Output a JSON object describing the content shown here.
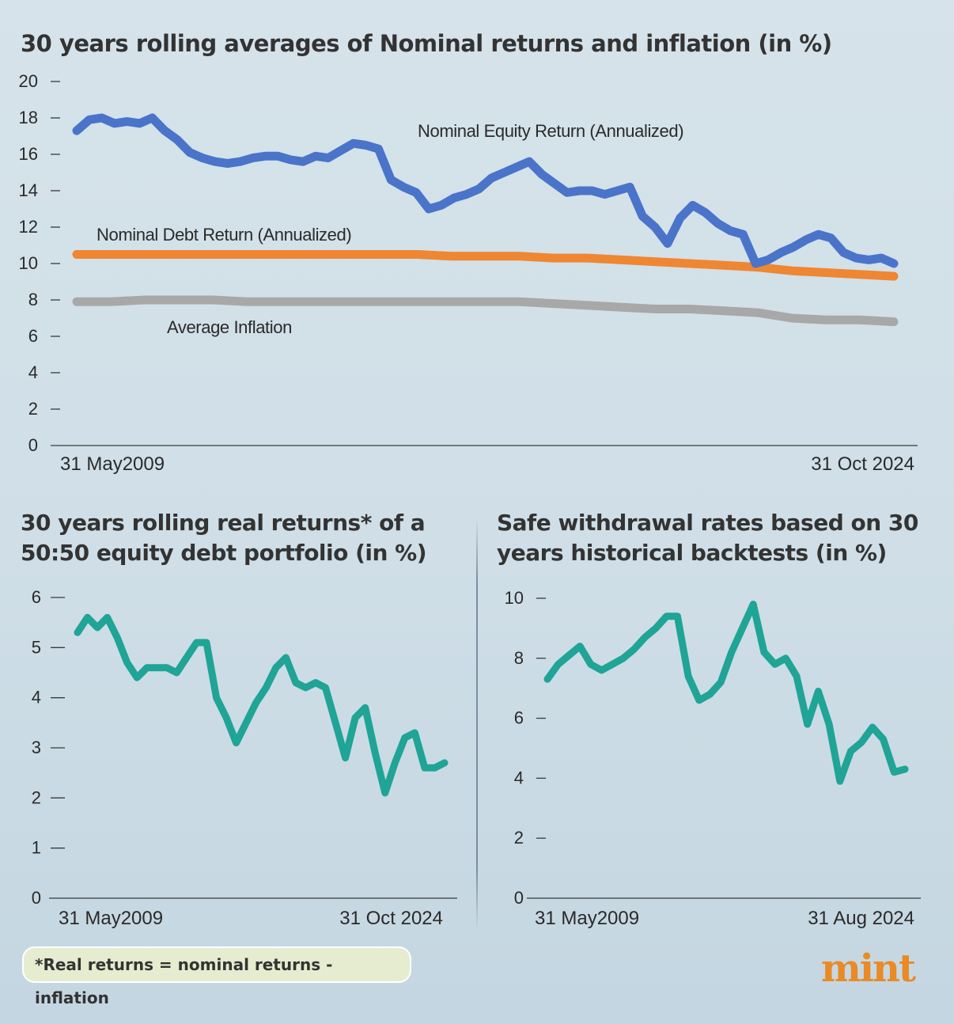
{
  "brand": {
    "logo": "mint",
    "logo_color": "#e98a27"
  },
  "footnote": "*Real returns = nominal returns - inflation",
  "colors": {
    "equity": "#4a74c9",
    "debt": "#ef8632",
    "inflation": "#a8a8a8",
    "teal": "#1fa496"
  },
  "chart_data": [
    {
      "id": "main",
      "type": "line",
      "title": "30 years rolling averages of Nominal returns and inflation (in %)",
      "xlabel": "",
      "ylabel": "",
      "ylim": [
        0,
        20
      ],
      "yticks": [
        "20",
        "18",
        "16",
        "14",
        "12",
        "10",
        "8",
        "6",
        "4",
        "2",
        "0"
      ],
      "x_start_label": "31 May2009",
      "x_end_label": "31 Oct 2024",
      "grid": false,
      "series": [
        {
          "name": "Nominal Equity Return (Annualized)",
          "color": "#4a74c9",
          "values": [
            17.3,
            17.9,
            18.0,
            17.7,
            17.8,
            17.7,
            18.0,
            17.3,
            16.8,
            16.1,
            15.8,
            15.6,
            15.5,
            15.6,
            15.8,
            15.9,
            15.9,
            15.7,
            15.6,
            15.9,
            15.8,
            16.2,
            16.6,
            16.5,
            16.3,
            14.6,
            14.2,
            13.9,
            13.0,
            13.2,
            13.6,
            13.8,
            14.1,
            14.7,
            15.0,
            15.3,
            15.6,
            14.9,
            14.4,
            13.9,
            14.0,
            14.0,
            13.8,
            14.0,
            14.2,
            12.6,
            12.0,
            11.1,
            12.5,
            13.2,
            12.8,
            12.2,
            11.8,
            11.6,
            10.0,
            10.2,
            10.6,
            10.9,
            11.3,
            11.6,
            11.4,
            10.6,
            10.3,
            10.2,
            10.3,
            10.0
          ]
        },
        {
          "name": "Nominal Debt Return (Annualized)",
          "color": "#ef8632",
          "values": [
            10.5,
            10.5,
            10.5,
            10.5,
            10.5,
            10.5,
            10.5,
            10.5,
            10.5,
            10.5,
            10.5,
            10.4,
            10.4,
            10.4,
            10.3,
            10.3,
            10.2,
            10.1,
            10.0,
            9.9,
            9.8,
            9.6,
            9.5,
            9.4,
            9.3
          ]
        },
        {
          "name": "Average Inflation",
          "color": "#a8a8a8",
          "values": [
            7.9,
            7.9,
            8.0,
            8.0,
            8.0,
            7.9,
            7.9,
            7.9,
            7.9,
            7.9,
            7.9,
            7.9,
            7.9,
            7.9,
            7.8,
            7.7,
            7.6,
            7.5,
            7.5,
            7.4,
            7.3,
            7.0,
            6.9,
            6.9,
            6.8
          ]
        }
      ]
    },
    {
      "id": "real",
      "type": "line",
      "title": "30 years rolling real returns* of a 50:50 equity debt portfolio (in %)",
      "xlabel": "",
      "ylabel": "",
      "ylim": [
        0,
        6
      ],
      "yticks": [
        "6",
        "5",
        "4",
        "3",
        "2",
        "1",
        "0"
      ],
      "x_start_label": "31 May2009",
      "x_end_label": "31 Oct 2024",
      "grid": false,
      "series": [
        {
          "name": "",
          "color": "#1fa496",
          "values": [
            5.3,
            5.6,
            5.4,
            5.6,
            5.2,
            4.7,
            4.4,
            4.6,
            4.6,
            4.6,
            4.5,
            4.8,
            5.1,
            5.1,
            4.0,
            3.6,
            3.1,
            3.5,
            3.9,
            4.2,
            4.6,
            4.8,
            4.3,
            4.2,
            4.3,
            4.2,
            3.5,
            2.8,
            3.6,
            3.8,
            2.9,
            2.1,
            2.7,
            3.2,
            3.3,
            2.6,
            2.6,
            2.7
          ]
        }
      ]
    },
    {
      "id": "swr",
      "type": "line",
      "title": "Safe withdrawal rates based on 30 years historical backtests (in %)",
      "xlabel": "",
      "ylabel": "",
      "ylim": [
        0,
        10
      ],
      "yticks": [
        "10",
        "8",
        "6",
        "4",
        "2",
        "0"
      ],
      "x_start_label": "31 May2009",
      "x_end_label": "31 Aug 2024",
      "grid": false,
      "series": [
        {
          "name": "",
          "color": "#1fa496",
          "values": [
            7.3,
            7.8,
            8.1,
            8.4,
            7.8,
            7.6,
            7.8,
            8.0,
            8.3,
            8.7,
            9.0,
            9.4,
            9.4,
            7.4,
            6.6,
            6.8,
            7.2,
            8.2,
            9.0,
            9.8,
            8.2,
            7.8,
            8.0,
            7.4,
            5.8,
            6.9,
            5.8,
            3.9,
            4.9,
            5.2,
            5.7,
            5.3,
            4.2,
            4.3
          ]
        }
      ]
    }
  ]
}
